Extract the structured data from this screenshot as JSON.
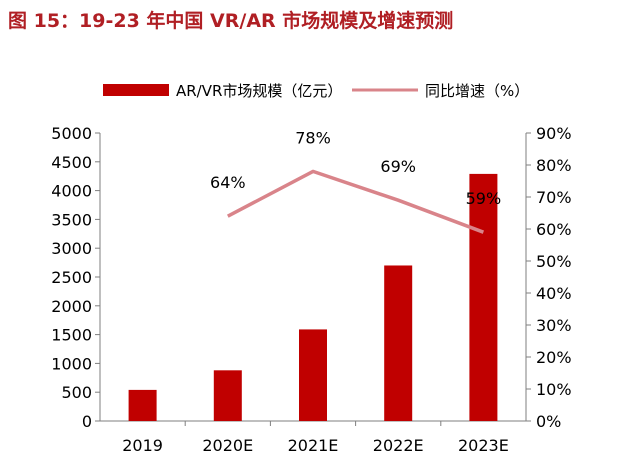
{
  "figure": {
    "title": "图 15：19-23 年中国 VR/AR 市场规模及增速预测"
  },
  "chart_data": {
    "type": "bar",
    "categories": [
      "2019",
      "2020E",
      "2021E",
      "2022E",
      "2023E"
    ],
    "series": [
      {
        "name": "AR/VR市场规模（亿元）",
        "type": "bar",
        "axis": "left",
        "values": [
          540,
          880,
          1590,
          2700,
          4290
        ]
      },
      {
        "name": "同比增速（%）",
        "type": "line",
        "axis": "right",
        "values": [
          null,
          64,
          78,
          69,
          59
        ],
        "labels": [
          "",
          "64%",
          "78%",
          "69%",
          "59%"
        ]
      }
    ],
    "y_left": {
      "range": [
        0,
        5000
      ],
      "ticks": [
        "0",
        "500",
        "1000",
        "1500",
        "2000",
        "2500",
        "3000",
        "3500",
        "4000",
        "4500",
        "5000"
      ]
    },
    "y_right": {
      "range": [
        0,
        90
      ],
      "ticks": [
        "0%",
        "10%",
        "20%",
        "30%",
        "40%",
        "50%",
        "60%",
        "70%",
        "80%",
        "90%"
      ]
    },
    "grid": false,
    "legend": "top",
    "colors": {
      "bar": "#c00000",
      "line": "#d9848a",
      "title": "#b01f24"
    }
  }
}
